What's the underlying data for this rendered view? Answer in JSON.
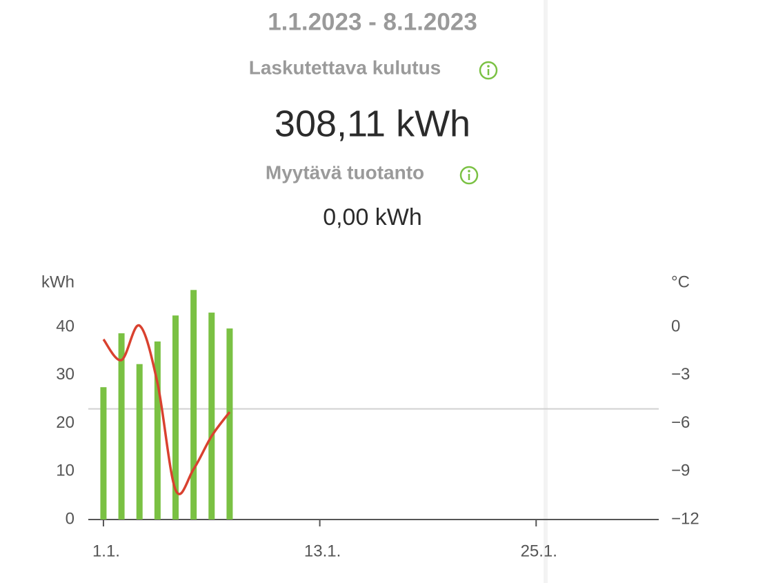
{
  "header": {
    "period": "1.1.2023 - 8.1.2023",
    "consumption_label": "Laskutettava kulutus",
    "consumption_value": "308,11 kWh",
    "production_label": "Myytävä tuotanto",
    "production_value": "0,00 kWh"
  },
  "chart_data": {
    "type": "bar-line",
    "y_label": "kWh",
    "y2_label": "°C",
    "x": [
      1,
      2,
      3,
      4,
      5,
      6,
      7,
      8
    ],
    "xlim": [
      0.16,
      31.8
    ],
    "xticks": [
      {
        "value": 1,
        "label": "1.1."
      },
      {
        "value": 13,
        "label": "13.1."
      },
      {
        "value": 25,
        "label": "25.1."
      }
    ],
    "ylim": [
      0,
      50
    ],
    "yticks": [
      0,
      10,
      20,
      30,
      40
    ],
    "y2lim": [
      -12,
      3
    ],
    "y2ticks": [
      {
        "value": -12,
        "label": "−12"
      },
      {
        "value": -9,
        "label": "−9"
      },
      {
        "value": -6,
        "label": "−6"
      },
      {
        "value": -3,
        "label": "−3"
      },
      0
    ],
    "reference_line": 23,
    "series": [
      {
        "type": "bar",
        "color": "#7ac143",
        "values": [
          27.5,
          38.7,
          32.3,
          37.0,
          42.4,
          47.7,
          43.0,
          39.7
        ]
      },
      {
        "type": "line",
        "axis": "y2",
        "color": "#d9412f",
        "values": [
          -0.77,
          -2.06,
          0.09,
          -3.5,
          -10.15,
          -8.86,
          -6.8,
          -5.3
        ]
      }
    ]
  }
}
